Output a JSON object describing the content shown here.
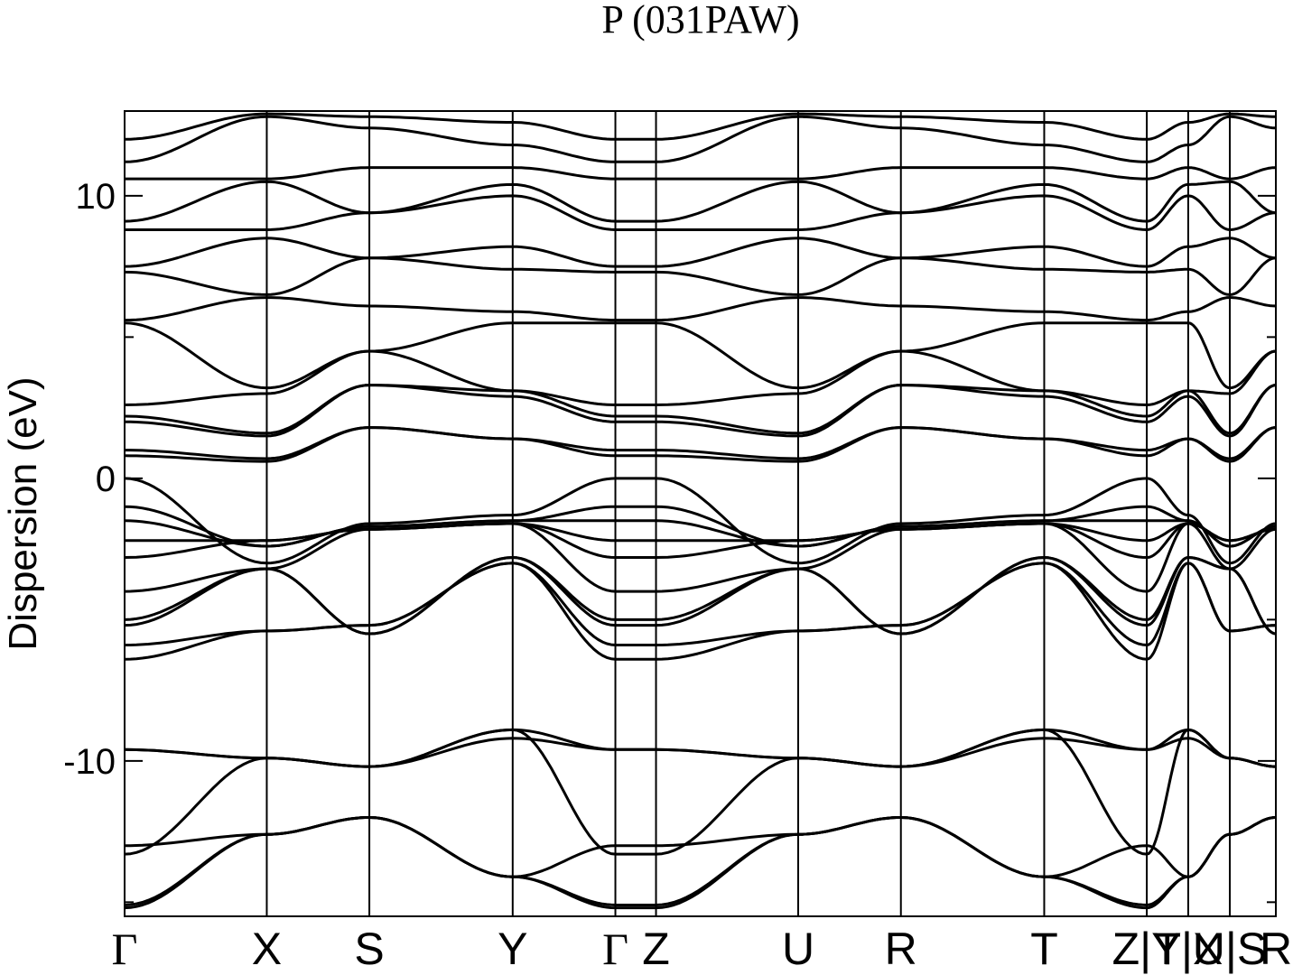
{
  "chart_data": {
    "type": "line",
    "title": "P (031PAW)",
    "ylabel": "Dispersion (eV)",
    "xlabel": "",
    "ylim": [
      -15.5,
      13.0
    ],
    "yticks": [
      {
        "value": 10,
        "label": "10"
      },
      {
        "value": 0,
        "label": "0"
      },
      {
        "value": -10,
        "label": "-10"
      }
    ],
    "grid": false,
    "kpoints": [
      {
        "label": "Γ",
        "pos": 0.0,
        "greek": true
      },
      {
        "label": "X",
        "pos": 0.1235
      },
      {
        "label": "S",
        "pos": 0.2126
      },
      {
        "label": "Y",
        "pos": 0.3371
      },
      {
        "label": "Γ",
        "pos": 0.4263,
        "greek": true
      },
      {
        "label": "Z",
        "pos": 0.4616
      },
      {
        "label": "U",
        "pos": 0.5851
      },
      {
        "label": "R",
        "pos": 0.6743
      },
      {
        "label": "T",
        "pos": 0.7988
      },
      {
        "label": "Z|Y",
        "pos": 0.8879
      },
      {
        "label": "T|X",
        "pos": 0.9239
      },
      {
        "label": "U|S",
        "pos": 0.96
      },
      {
        "label": "R",
        "pos": 1.0
      }
    ],
    "series": [
      {
        "values": [
          -15.2,
          -12.6,
          -12.0,
          -14.1,
          -15.2,
          -15.2,
          -12.6,
          -12.0,
          -14.1,
          -15.2,
          -14.1,
          -12.6,
          -12.0
        ]
      },
      {
        "values": [
          -15.1,
          -12.6,
          -12.0,
          -14.1,
          -15.1,
          -15.1,
          -12.6,
          -12.0,
          -14.1,
          -15.1,
          -14.1,
          -12.6,
          -12.0
        ]
      },
      {
        "values": [
          -13.0,
          -12.6,
          -12.0,
          -14.1,
          -13.0,
          -13.0,
          -12.6,
          -12.0,
          -14.1,
          -13.0,
          -14.1,
          -12.6,
          -12.0
        ]
      },
      {
        "values": [
          -13.3,
          -9.9,
          -10.2,
          -8.9,
          -13.3,
          -13.3,
          -9.9,
          -10.2,
          -8.9,
          -13.3,
          -8.9,
          -9.9,
          -10.2
        ]
      },
      {
        "values": [
          -9.6,
          -9.9,
          -10.2,
          -8.9,
          -9.6,
          -9.6,
          -9.9,
          -10.2,
          -8.9,
          -9.6,
          -8.9,
          -9.9,
          -10.2
        ]
      },
      {
        "values": [
          -9.6,
          -9.9,
          -10.2,
          -9.2,
          -9.6,
          -9.6,
          -9.9,
          -10.2,
          -9.2,
          -9.6,
          -9.2,
          -9.9,
          -10.2
        ]
      },
      {
        "values": [
          -6.4,
          -5.4,
          -5.2,
          -3.0,
          -6.4,
          -6.4,
          -5.4,
          -5.2,
          -3.0,
          -6.4,
          -3.0,
          -5.4,
          -5.2
        ]
      },
      {
        "values": [
          -5.9,
          -5.4,
          -5.2,
          -3.0,
          -5.9,
          -5.9,
          -5.4,
          -5.2,
          -3.0,
          -5.9,
          -3.0,
          -5.4,
          -5.2
        ]
      },
      {
        "values": [
          -5.2,
          -3.2,
          -5.5,
          -2.8,
          -5.2,
          -5.2,
          -3.2,
          -5.5,
          -2.8,
          -5.2,
          -2.8,
          -3.2,
          -5.5
        ]
      },
      {
        "values": [
          -5.0,
          -3.2,
          -5.5,
          -2.8,
          -5.0,
          -5.0,
          -3.2,
          -5.5,
          -2.8,
          -5.0,
          -2.8,
          -3.2,
          -5.5
        ]
      },
      {
        "values": [
          -4.0,
          -3.2,
          -1.8,
          -1.6,
          -4.0,
          -4.0,
          -3.2,
          -1.8,
          -1.6,
          -4.0,
          -1.6,
          -3.2,
          -1.8
        ]
      },
      {
        "values": [
          -2.8,
          -2.2,
          -1.8,
          -1.6,
          -2.8,
          -2.8,
          -2.2,
          -1.8,
          -1.6,
          -2.8,
          -1.6,
          -2.2,
          -1.8
        ]
      },
      {
        "values": [
          -2.2,
          -2.2,
          -1.8,
          -1.6,
          -2.2,
          -2.2,
          -2.2,
          -1.8,
          -1.6,
          -2.2,
          -1.6,
          -2.2,
          -1.8
        ]
      },
      {
        "values": [
          -1.5,
          -2.4,
          -1.7,
          -1.5,
          -1.5,
          -1.5,
          -2.4,
          -1.7,
          -1.5,
          -1.5,
          -1.5,
          -2.4,
          -1.7
        ]
      },
      {
        "values": [
          -1.0,
          -2.4,
          -1.7,
          -1.5,
          -1.0,
          -1.0,
          -2.4,
          -1.7,
          -1.5,
          -1.0,
          -1.5,
          -2.4,
          -1.7
        ]
      },
      {
        "values": [
          0.0,
          -3.0,
          -1.6,
          -1.3,
          0.0,
          0.0,
          -3.0,
          -1.6,
          -1.3,
          0.0,
          -1.3,
          -3.0,
          -1.6
        ]
      },
      {
        "values": [
          0.8,
          0.6,
          1.8,
          1.4,
          0.8,
          0.8,
          0.6,
          1.8,
          1.4,
          0.8,
          1.4,
          0.6,
          1.8
        ]
      },
      {
        "values": [
          1.0,
          0.7,
          1.8,
          1.4,
          1.0,
          1.0,
          0.7,
          1.8,
          1.4,
          1.0,
          1.4,
          0.7,
          1.8
        ]
      },
      {
        "values": [
          2.0,
          1.5,
          3.3,
          2.9,
          2.0,
          2.0,
          1.5,
          3.3,
          2.9,
          2.0,
          2.9,
          1.5,
          3.3
        ]
      },
      {
        "values": [
          2.2,
          1.6,
          3.3,
          3.1,
          2.2,
          2.2,
          1.6,
          3.3,
          3.1,
          2.2,
          3.1,
          1.6,
          3.3
        ]
      },
      {
        "values": [
          2.6,
          3.0,
          4.5,
          3.1,
          2.6,
          2.6,
          3.0,
          4.5,
          3.1,
          2.6,
          3.1,
          3.0,
          4.5
        ]
      },
      {
        "values": [
          5.5,
          3.2,
          4.5,
          5.5,
          5.5,
          5.5,
          3.2,
          4.5,
          5.5,
          5.5,
          5.5,
          3.2,
          4.5
        ]
      },
      {
        "values": [
          5.6,
          6.4,
          6.1,
          5.9,
          5.6,
          5.6,
          6.4,
          6.1,
          5.9,
          5.6,
          5.9,
          6.4,
          6.1
        ]
      },
      {
        "values": [
          7.3,
          6.5,
          7.8,
          7.4,
          7.3,
          7.3,
          6.5,
          7.8,
          7.4,
          7.3,
          7.4,
          6.5,
          7.8
        ]
      },
      {
        "values": [
          7.5,
          8.5,
          7.8,
          8.2,
          7.5,
          7.5,
          8.5,
          7.8,
          8.2,
          7.5,
          8.2,
          8.5,
          7.8
        ]
      },
      {
        "values": [
          8.8,
          8.8,
          9.4,
          10.0,
          8.8,
          8.8,
          8.8,
          9.4,
          10.0,
          8.8,
          10.0,
          8.8,
          9.4
        ]
      },
      {
        "values": [
          9.1,
          10.5,
          9.4,
          10.4,
          9.1,
          9.1,
          10.5,
          9.4,
          10.4,
          9.1,
          10.4,
          10.5,
          9.4
        ]
      },
      {
        "values": [
          10.6,
          10.6,
          11.0,
          11.0,
          10.6,
          10.6,
          10.6,
          11.0,
          11.0,
          10.6,
          11.0,
          10.6,
          11.0
        ]
      },
      {
        "values": [
          11.2,
          12.8,
          12.4,
          11.8,
          11.2,
          11.2,
          12.8,
          12.4,
          11.8,
          11.2,
          11.8,
          12.8,
          12.4
        ]
      },
      {
        "values": [
          12.0,
          12.9,
          12.8,
          12.6,
          12.0,
          12.0,
          12.9,
          12.8,
          12.6,
          12.0,
          12.6,
          12.9,
          12.8
        ]
      }
    ]
  }
}
